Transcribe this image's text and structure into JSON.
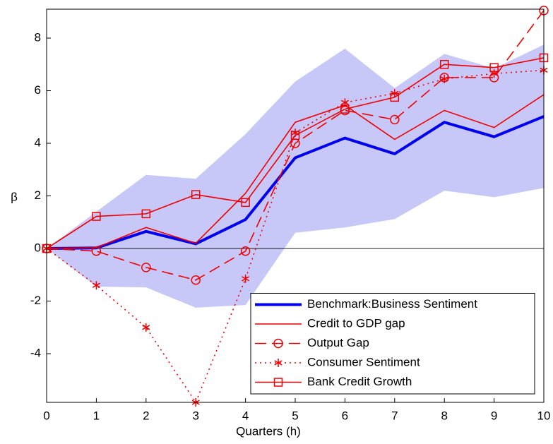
{
  "chart_data": {
    "type": "line",
    "xlabel": "Quarters (h)",
    "ylabel": "β",
    "x": [
      0,
      1,
      2,
      3,
      4,
      5,
      6,
      7,
      8,
      9,
      10
    ],
    "xlim": [
      0,
      10
    ],
    "xticks": [
      0,
      1,
      2,
      3,
      4,
      5,
      6,
      7,
      8,
      9,
      10
    ],
    "ylim": [
      -5.85,
      9.1
    ],
    "yticks": [
      -4,
      -2,
      0,
      2,
      4,
      6,
      8
    ],
    "legend_position": "lower right",
    "band": {
      "color": "#c8c8f8",
      "upper": [
        0,
        1.4,
        2.8,
        2.65,
        4.35,
        6.35,
        7.6,
        6.1,
        7.4,
        6.85,
        7.75
      ],
      "lower": [
        0,
        -1.45,
        -1.48,
        -2.25,
        -2.15,
        0.6,
        0.8,
        1.12,
        2.2,
        1.95,
        2.3
      ]
    },
    "series": [
      {
        "name": "Benchmark:Business Sentiment",
        "color": "#0000ee",
        "line_style": "solid",
        "line_width": 4,
        "marker": "none",
        "values": [
          0,
          0.02,
          0.65,
          0.18,
          1.1,
          3.45,
          4.2,
          3.6,
          4.8,
          4.25,
          5.02
        ]
      },
      {
        "name": "Credit to GDP gap",
        "color": "#ee0000",
        "line_style": "solid",
        "line_width": 1.6,
        "marker": "none",
        "values": [
          0,
          0.03,
          0.8,
          0.2,
          2.1,
          4.8,
          5.45,
          4.15,
          5.25,
          4.6,
          5.85
        ]
      },
      {
        "name": "Output Gap",
        "color": "#ee0000",
        "line_style": "dashed",
        "line_width": 1.6,
        "marker": "circle",
        "values": [
          0,
          -0.1,
          -0.72,
          -1.2,
          -0.1,
          4.0,
          5.25,
          4.9,
          6.5,
          6.5,
          9.05
        ]
      },
      {
        "name": "Consumer Sentiment",
        "color": "#ee0000",
        "line_style": "dotted",
        "line_width": 1.6,
        "marker": "star",
        "values": [
          0,
          -1.4,
          -3.0,
          -5.85,
          -1.15,
          4.4,
          5.55,
          5.9,
          6.45,
          6.65,
          6.78
        ]
      },
      {
        "name": "Bank Credit Growth",
        "color": "#ee0000",
        "line_style": "solid",
        "line_width": 1.6,
        "marker": "square",
        "values": [
          0,
          1.22,
          1.32,
          2.05,
          1.75,
          4.3,
          5.3,
          5.75,
          7.0,
          6.88,
          7.25
        ]
      }
    ]
  }
}
